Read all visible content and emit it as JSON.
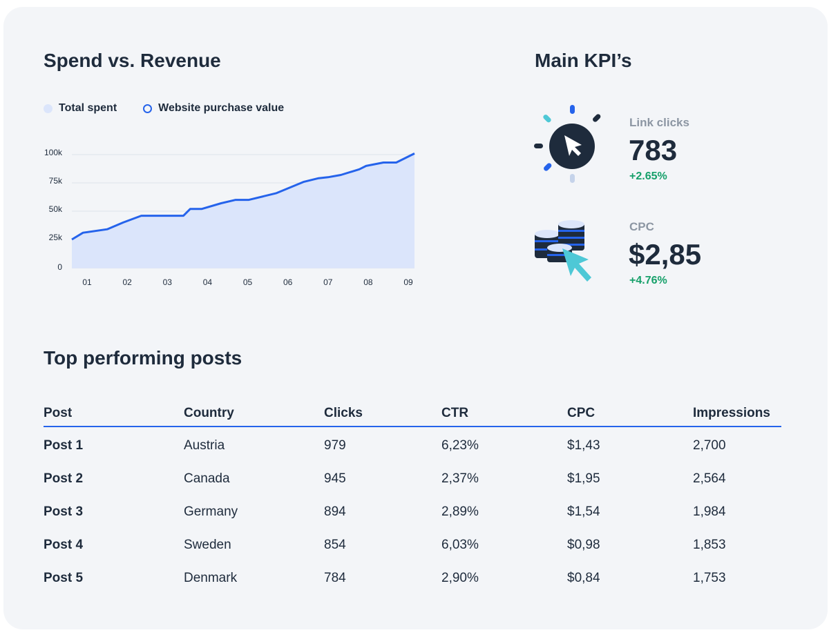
{
  "chart_section": {
    "title": "Spend vs. Revenue"
  },
  "chart_data": {
    "type": "area",
    "legend": "top-left",
    "legend_items": [
      {
        "name": "Total spent",
        "color": "#dbe5fb",
        "marker": "filled-circle"
      },
      {
        "name": "Website purchase value",
        "color": "#2563eb",
        "marker": "ring"
      }
    ],
    "x_ticks": [
      "01",
      "02",
      "03",
      "04",
      "05",
      "06",
      "07",
      "08",
      "09"
    ],
    "y_ticks": [
      "0",
      "25k",
      "50k",
      "75k",
      "100k"
    ],
    "ylim": [
      0,
      100000
    ],
    "grid": true,
    "series": [
      {
        "name": "Website purchase value",
        "x": [
          0.62,
          0.9,
          1.5,
          1.9,
          2.35,
          3.4,
          3.57,
          3.86,
          4.34,
          4.7,
          5.03,
          5.72,
          6.4,
          6.75,
          7.0,
          7.32,
          7.78,
          7.95,
          8.38,
          8.7,
          9.16
        ],
        "values": [
          25000,
          31000,
          34000,
          40000,
          46000,
          46000,
          52000,
          52000,
          57000,
          60000,
          60000,
          66000,
          76000,
          79000,
          80000,
          82000,
          87000,
          90000,
          93000,
          93000,
          101000
        ]
      }
    ]
  },
  "kpi_section": {
    "title": "Main KPI’s",
    "items": [
      {
        "label": "Link clicks",
        "value": "783",
        "change": "+2.65%",
        "icon": "cursor-click-icon"
      },
      {
        "label": "CPC",
        "value": "$2,85",
        "change": "+4.76%",
        "icon": "coins-cursor-icon"
      }
    ]
  },
  "table_section": {
    "title": "Top performing posts",
    "headers": [
      "Post",
      "Country",
      "Clicks",
      "CTR",
      "CPC",
      "Impressions"
    ],
    "rows": [
      [
        "Post 1",
        "Austria",
        "979",
        "6,23%",
        "$1,43",
        "2,700"
      ],
      [
        "Post 2",
        "Canada",
        "945",
        "2,37%",
        "$1,95",
        "2,564"
      ],
      [
        "Post 3",
        "Germany",
        "894",
        "2,89%",
        "$1,54",
        "1,984"
      ],
      [
        "Post 4",
        "Sweden",
        "854",
        "6,03%",
        "$0,98",
        "1,853"
      ],
      [
        "Post 5",
        "Denmark",
        "784",
        "2,90%",
        "$0,84",
        "1,753"
      ]
    ]
  },
  "colors": {
    "accent": "#2563eb",
    "area": "#dbe5fb",
    "positive": "#16a06a",
    "text": "#1e2b3c",
    "teal": "#4ec8d6"
  }
}
